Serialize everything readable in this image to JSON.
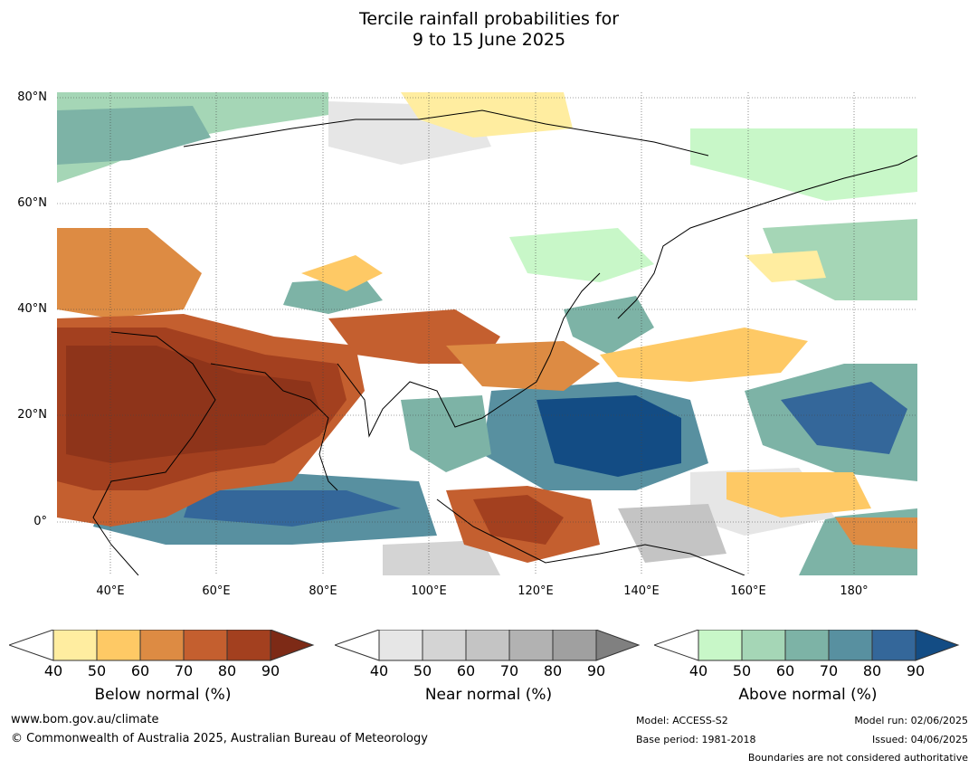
{
  "title": {
    "line1": "Tercile rainfall probabilities for",
    "line2": "9 to 15 June 2025"
  },
  "map": {
    "lat_labels": [
      "80°N",
      "60°N",
      "40°N",
      "20°N",
      "0°"
    ],
    "lon_labels": [
      "40°E",
      "60°E",
      "80°E",
      "100°E",
      "120°E",
      "140°E",
      "160°E",
      "180°"
    ],
    "region": "Asia, Indian Ocean and western Pacific",
    "lon_range": [
      30,
      192
    ],
    "lat_range": [
      -10,
      81
    ]
  },
  "colorbars": [
    {
      "label": "Below normal (%)",
      "ticks": [
        "40",
        "50",
        "60",
        "70",
        "80",
        "90"
      ],
      "colors": [
        "#ffffff",
        "#ffeda0",
        "#fec965",
        "#dd8b43",
        "#c45f2f",
        "#a3401f",
        "#7d2a16"
      ]
    },
    {
      "label": "Near normal (%)",
      "ticks": [
        "40",
        "50",
        "60",
        "70",
        "80",
        "90"
      ],
      "colors": [
        "#ffffff",
        "#e6e6e6",
        "#d4d4d4",
        "#c4c4c4",
        "#b2b2b2",
        "#a0a0a0",
        "#808080"
      ]
    },
    {
      "label": "Above normal (%)",
      "ticks": [
        "40",
        "50",
        "60",
        "70",
        "80",
        "90"
      ],
      "colors": [
        "#ffffff",
        "#c8f7c8",
        "#a5d6b6",
        "#7db3a6",
        "#5890a0",
        "#34679a",
        "#134c84"
      ]
    }
  ],
  "footer": {
    "website": "www.bom.gov.au/climate",
    "copyright": "© Commonwealth of Australia 2025, Australian Bureau of Meteorology",
    "model": "Model: ACCESS-S2",
    "base_period": "Base period: 1981-2018",
    "model_run": "Model run: 02/06/2025",
    "issued": "Issued: 04/06/2025",
    "disclaimer": "Boundaries are not considered authoritative"
  }
}
